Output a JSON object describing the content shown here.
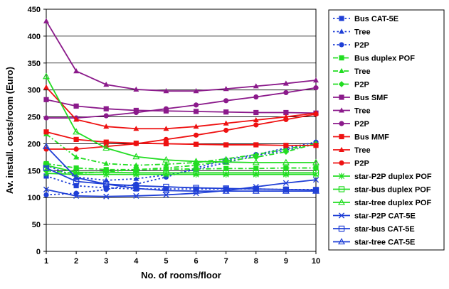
{
  "chart_data": {
    "type": "line",
    "title": "",
    "xlabel": "No. of rooms/floor",
    "ylabel": "Av. install. costs/room (Euro)",
    "x": [
      1,
      2,
      3,
      4,
      5,
      6,
      7,
      8,
      9,
      10
    ],
    "xticks": [
      "1",
      "2",
      "3",
      "4",
      "5",
      "6",
      "7",
      "8",
      "9",
      "10"
    ],
    "ylim": [
      0,
      450
    ],
    "yticks": [
      0,
      50,
      100,
      150,
      200,
      250,
      300,
      350,
      400,
      450
    ],
    "grid": "horizontal",
    "legend": "right",
    "series": [
      {
        "name": "Bus CAT-5E",
        "color": "#1f3fd6",
        "dash": "dot",
        "marker": "square",
        "values": [
          140,
          122,
          118,
          116,
          116,
          116,
          116,
          116,
          115,
          115
        ]
      },
      {
        "name": "Tree",
        "color": "#1f3fd6",
        "dash": "dot",
        "marker": "triangle",
        "values": [
          160,
          138,
          132,
          135,
          142,
          152,
          165,
          178,
          188,
          200
        ]
      },
      {
        "name": "P2P",
        "color": "#1f3fd6",
        "dash": "dot",
        "marker": "circle",
        "values": [
          105,
          108,
          115,
          125,
          138,
          155,
          170,
          180,
          192,
          203
        ]
      },
      {
        "name": "Bus duplex POF",
        "color": "#22dd22",
        "dash": "dashdot",
        "marker": "square",
        "values": [
          163,
          155,
          152,
          152,
          153,
          153,
          154,
          154,
          155,
          155
        ]
      },
      {
        "name": "Tree",
        "color": "#22dd22",
        "dash": "dashdot",
        "marker": "triangle",
        "values": [
          218,
          175,
          163,
          160,
          162,
          165,
          172,
          180,
          190,
          200
        ]
      },
      {
        "name": "P2P",
        "color": "#22dd22",
        "dash": "dashdot",
        "marker": "diamond",
        "values": [
          150,
          145,
          148,
          152,
          155,
          160,
          168,
          175,
          185,
          200
        ]
      },
      {
        "name": "Bus SMF",
        "color": "#8b1a8b",
        "dash": "solid",
        "marker": "square",
        "values": [
          282,
          270,
          265,
          262,
          261,
          260,
          259,
          258,
          258,
          257
        ]
      },
      {
        "name": "Tree",
        "color": "#8b1a8b",
        "dash": "solid",
        "marker": "triangle",
        "values": [
          428,
          335,
          310,
          301,
          298,
          298,
          302,
          307,
          312,
          318
        ]
      },
      {
        "name": "P2P",
        "color": "#8b1a8b",
        "dash": "solid",
        "marker": "circle",
        "values": [
          248,
          248,
          252,
          258,
          265,
          272,
          280,
          287,
          295,
          304
        ]
      },
      {
        "name": "Bus MMF",
        "color": "#ee1111",
        "dash": "solid",
        "marker": "square",
        "values": [
          222,
          208,
          203,
          201,
          200,
          199,
          198,
          198,
          197,
          197
        ]
      },
      {
        "name": "Tree",
        "color": "#ee1111",
        "dash": "solid",
        "marker": "triangle",
        "values": [
          305,
          245,
          232,
          228,
          228,
          232,
          238,
          244,
          250,
          257
        ]
      },
      {
        "name": "P2P",
        "color": "#ee1111",
        "dash": "solid",
        "marker": "circle",
        "values": [
          190,
          190,
          195,
          200,
          208,
          216,
          225,
          235,
          245,
          255
        ]
      },
      {
        "name": "star-P2P duplex POF",
        "color": "#22dd22",
        "dash": "solid",
        "marker": "asterisk",
        "values": [
          145,
          143,
          143,
          143,
          143,
          143,
          143,
          143,
          143,
          143
        ]
      },
      {
        "name": "star-bus duplex POF",
        "color": "#22dd22",
        "dash": "solid",
        "marker": "opensquare",
        "values": [
          160,
          147,
          147,
          146,
          146,
          146,
          146,
          146,
          146,
          146
        ]
      },
      {
        "name": "star-tree duplex POF",
        "color": "#22dd22",
        "dash": "solid",
        "marker": "opentriangle",
        "values": [
          325,
          222,
          192,
          176,
          170,
          167,
          166,
          165,
          165,
          165
        ]
      },
      {
        "name": "star-P2P CAT-5E",
        "color": "#1f3fd6",
        "dash": "solid",
        "marker": "x",
        "values": [
          115,
          103,
          102,
          103,
          105,
          108,
          113,
          120,
          127,
          133
        ]
      },
      {
        "name": "star-bus CAT-5E",
        "color": "#1f3fd6",
        "dash": "solid",
        "marker": "opensquare",
        "values": [
          155,
          130,
          125,
          122,
          120,
          118,
          117,
          116,
          115,
          114
        ]
      },
      {
        "name": "star-tree CAT-5E",
        "color": "#1f3fd6",
        "dash": "solid",
        "marker": "opentriangle",
        "values": [
          195,
          137,
          125,
          117,
          113,
          112,
          112,
          112,
          112,
          112
        ]
      }
    ]
  }
}
